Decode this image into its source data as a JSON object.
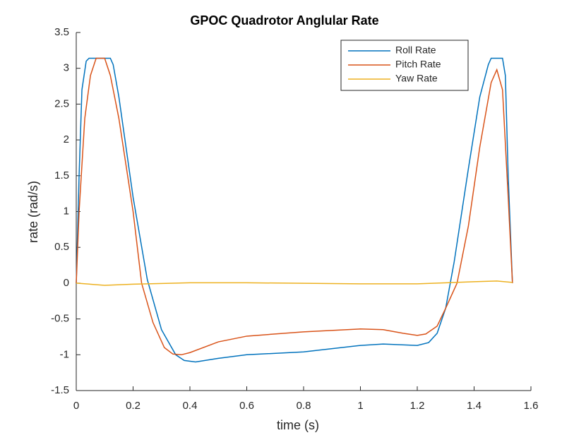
{
  "chart_data": {
    "type": "line",
    "title": "GPOC Quadrotor Anglular Rate",
    "xlabel": "time (s)",
    "ylabel": "rate (rad/s)",
    "xlim": [
      0,
      1.6
    ],
    "xticks": [
      0,
      0.2,
      0.4,
      0.6,
      0.8,
      1,
      1.2,
      1.4,
      1.6
    ],
    "ylim": [
      -1.5,
      3.5
    ],
    "yticks": [
      -1.5,
      -1,
      -0.5,
      0,
      0.5,
      1,
      1.5,
      2,
      2.5,
      3,
      3.5
    ],
    "legend": "top-right",
    "series": [
      {
        "name": "Roll Rate",
        "color": "#0072bd",
        "x": [
          0,
          0.01,
          0.02,
          0.035,
          0.045,
          0.12,
          0.13,
          0.15,
          0.2,
          0.25,
          0.3,
          0.35,
          0.38,
          0.42,
          0.5,
          0.6,
          0.8,
          1.0,
          1.08,
          1.2,
          1.24,
          1.27,
          1.3,
          1.33,
          1.38,
          1.42,
          1.45,
          1.46,
          1.5,
          1.51,
          1.52,
          1.535
        ],
        "values": [
          0,
          1.5,
          2.7,
          3.1,
          3.14,
          3.14,
          3.05,
          2.6,
          1.2,
          0.05,
          -0.65,
          -1.0,
          -1.08,
          -1.1,
          -1.05,
          -1.0,
          -0.96,
          -0.87,
          -0.85,
          -0.87,
          -0.83,
          -0.7,
          -0.35,
          0.3,
          1.6,
          2.6,
          3.05,
          3.14,
          3.14,
          2.9,
          1.5,
          0
        ]
      },
      {
        "name": "Pitch Rate",
        "color": "#d95319",
        "x": [
          0,
          0.01,
          0.03,
          0.05,
          0.07,
          0.1,
          0.12,
          0.15,
          0.2,
          0.23,
          0.27,
          0.31,
          0.34,
          0.37,
          0.4,
          0.5,
          0.6,
          0.8,
          1.0,
          1.08,
          1.15,
          1.2,
          1.23,
          1.27,
          1.3,
          1.34,
          1.38,
          1.42,
          1.46,
          1.48,
          1.5,
          1.52,
          1.535
        ],
        "values": [
          0,
          1.0,
          2.3,
          2.9,
          3.14,
          3.14,
          2.9,
          2.3,
          1.0,
          0.0,
          -0.55,
          -0.9,
          -0.99,
          -1.0,
          -0.97,
          -0.82,
          -0.74,
          -0.68,
          -0.64,
          -0.65,
          -0.7,
          -0.73,
          -0.71,
          -0.6,
          -0.35,
          0.0,
          0.8,
          1.9,
          2.8,
          2.98,
          2.7,
          1.2,
          0
        ]
      },
      {
        "name": "Yaw Rate",
        "color": "#edb120",
        "x": [
          0,
          0.1,
          0.2,
          0.4,
          0.6,
          1.0,
          1.2,
          1.4,
          1.48,
          1.535
        ],
        "values": [
          0,
          -0.03,
          -0.015,
          0.005,
          0.005,
          -0.01,
          -0.01,
          0.02,
          0.03,
          0.01
        ]
      }
    ]
  }
}
